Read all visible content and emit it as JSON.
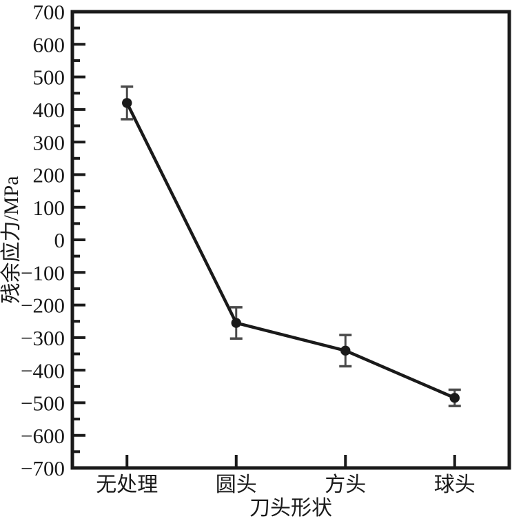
{
  "figure": {
    "bg": "#ffffff",
    "ink": "#1a1a1a",
    "error_ink": "#4a4a4a"
  },
  "chart_data": {
    "type": "line",
    "title": "",
    "categories": [
      "无处理",
      "圆头",
      "方头",
      "球头"
    ],
    "series": [
      {
        "name": "残余应力",
        "values": [
          420,
          -255,
          -340,
          -485
        ],
        "errors": [
          50,
          48,
          48,
          25
        ]
      }
    ],
    "xlabel": "刀头形状",
    "ylabel": "残余应力/MPa",
    "ylim": [
      -700,
      700
    ],
    "y_major_step": 100,
    "y_minor_step": 50,
    "y_tick_labels": [
      "−700",
      "−600",
      "−500",
      "−400",
      "−300",
      "−200",
      "−100",
      "0",
      "100",
      "200",
      "300",
      "400",
      "500",
      "600",
      "700"
    ],
    "grid": false,
    "legend": null,
    "marker": "circle",
    "error_bars": true
  }
}
